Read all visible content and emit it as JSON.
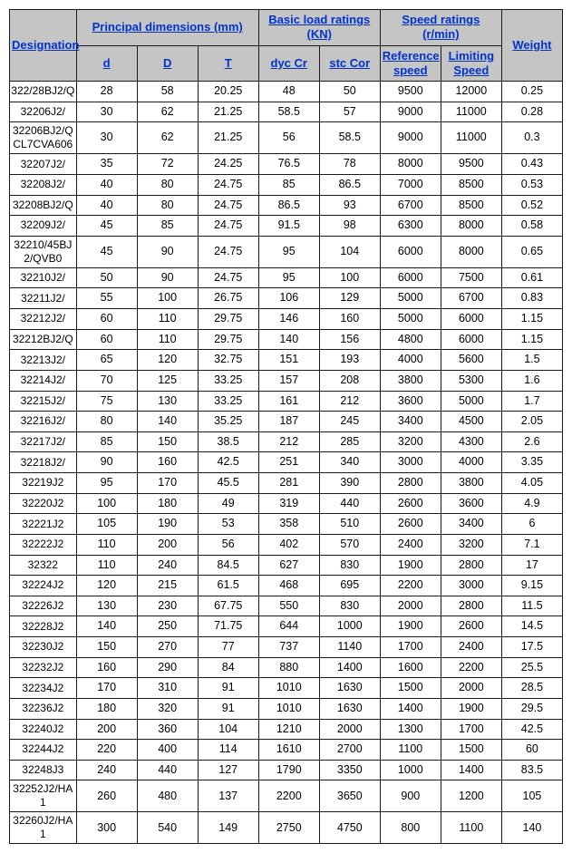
{
  "headers": {
    "designation": "Designation",
    "principal": "Principal dimensions (mm)",
    "basic_load": "Basic load ratings (KN)",
    "speed": "Speed ratings (r/min)",
    "weight": "Weight",
    "d": "d",
    "D": "D",
    "T": "T",
    "dycCr": "dyc Cr",
    "stcCor": "stc Cor",
    "reference": "Reference speed",
    "limiting": "Limiting Speed"
  },
  "rows": [
    {
      "desig": "322/28BJ2/Q",
      "d": "28",
      "D": "58",
      "T": "20.25",
      "dyc": "48",
      "stc": "50",
      "ref": "9500",
      "lim": "12000",
      "w": "0.25"
    },
    {
      "desig": "32206J2/",
      "d": "30",
      "D": "62",
      "T": "21.25",
      "dyc": "58.5",
      "stc": "57",
      "ref": "9000",
      "lim": "11000",
      "w": "0.28"
    },
    {
      "desig": "32206BJ2/QCL7CVA606",
      "d": "30",
      "D": "62",
      "T": "21.25",
      "dyc": "56",
      "stc": "58.5",
      "ref": "9000",
      "lim": "11000",
      "w": "0.3"
    },
    {
      "desig": "32207J2/",
      "d": "35",
      "D": "72",
      "T": "24.25",
      "dyc": "76.5",
      "stc": "78",
      "ref": "8000",
      "lim": "9500",
      "w": "0.43"
    },
    {
      "desig": "32208J2/",
      "d": "40",
      "D": "80",
      "T": "24.75",
      "dyc": "85",
      "stc": "86.5",
      "ref": "7000",
      "lim": "8500",
      "w": "0.53"
    },
    {
      "desig": "32208BJ2/Q",
      "d": "40",
      "D": "80",
      "T": "24.75",
      "dyc": "86.5",
      "stc": "93",
      "ref": "6700",
      "lim": "8500",
      "w": "0.52"
    },
    {
      "desig": "32209J2/",
      "d": "45",
      "D": "85",
      "T": "24.75",
      "dyc": "91.5",
      "stc": "98",
      "ref": "6300",
      "lim": "8000",
      "w": "0.58"
    },
    {
      "desig": "32210/45BJ2/QVB0",
      "d": "45",
      "D": "90",
      "T": "24.75",
      "dyc": "95",
      "stc": "104",
      "ref": "6000",
      "lim": "8000",
      "w": "0.65"
    },
    {
      "desig": "32210J2/",
      "d": "50",
      "D": "90",
      "T": "24.75",
      "dyc": "95",
      "stc": "100",
      "ref": "6000",
      "lim": "7500",
      "w": "0.61"
    },
    {
      "desig": "32211J2/",
      "d": "55",
      "D": "100",
      "T": "26.75",
      "dyc": "106",
      "stc": "129",
      "ref": "5000",
      "lim": "6700",
      "w": "0.83"
    },
    {
      "desig": "32212J2/",
      "d": "60",
      "D": "110",
      "T": "29.75",
      "dyc": "146",
      "stc": "160",
      "ref": "5000",
      "lim": "6000",
      "w": "1.15"
    },
    {
      "desig": "32212BJ2/Q",
      "d": "60",
      "D": "110",
      "T": "29.75",
      "dyc": "140",
      "stc": "156",
      "ref": "4800",
      "lim": "6000",
      "w": "1.15"
    },
    {
      "desig": "32213J2/",
      "d": "65",
      "D": "120",
      "T": "32.75",
      "dyc": "151",
      "stc": "193",
      "ref": "4000",
      "lim": "5600",
      "w": "1.5"
    },
    {
      "desig": "32214J2/",
      "d": "70",
      "D": "125",
      "T": "33.25",
      "dyc": "157",
      "stc": "208",
      "ref": "3800",
      "lim": "5300",
      "w": "1.6"
    },
    {
      "desig": "32215J2/",
      "d": "75",
      "D": "130",
      "T": "33.25",
      "dyc": "161",
      "stc": "212",
      "ref": "3600",
      "lim": "5000",
      "w": "1.7"
    },
    {
      "desig": "32216J2/",
      "d": "80",
      "D": "140",
      "T": "35.25",
      "dyc": "187",
      "stc": "245",
      "ref": "3400",
      "lim": "4500",
      "w": "2.05"
    },
    {
      "desig": "32217J2/",
      "d": "85",
      "D": "150",
      "T": "38.5",
      "dyc": "212",
      "stc": "285",
      "ref": "3200",
      "lim": "4300",
      "w": "2.6"
    },
    {
      "desig": "32218J2/",
      "d": "90",
      "D": "160",
      "T": "42.5",
      "dyc": "251",
      "stc": "340",
      "ref": "3000",
      "lim": "4000",
      "w": "3.35"
    },
    {
      "desig": "32219J2",
      "d": "95",
      "D": "170",
      "T": "45.5",
      "dyc": "281",
      "stc": "390",
      "ref": "2800",
      "lim": "3800",
      "w": "4.05"
    },
    {
      "desig": "32220J2",
      "d": "100",
      "D": "180",
      "T": "49",
      "dyc": "319",
      "stc": "440",
      "ref": "2600",
      "lim": "3600",
      "w": "4.9"
    },
    {
      "desig": "32221J2",
      "d": "105",
      "D": "190",
      "T": "53",
      "dyc": "358",
      "stc": "510",
      "ref": "2600",
      "lim": "3400",
      "w": "6"
    },
    {
      "desig": "32222J2",
      "d": "110",
      "D": "200",
      "T": "56",
      "dyc": "402",
      "stc": "570",
      "ref": "2400",
      "lim": "3200",
      "w": "7.1"
    },
    {
      "desig": "32322",
      "d": "110",
      "D": "240",
      "T": "84.5",
      "dyc": "627",
      "stc": "830",
      "ref": "1900",
      "lim": "2800",
      "w": "17"
    },
    {
      "desig": "32224J2",
      "d": "120",
      "D": "215",
      "T": "61.5",
      "dyc": "468",
      "stc": "695",
      "ref": "2200",
      "lim": "3000",
      "w": "9.15"
    },
    {
      "desig": "32226J2",
      "d": "130",
      "D": "230",
      "T": "67.75",
      "dyc": "550",
      "stc": "830",
      "ref": "2000",
      "lim": "2800",
      "w": "11.5"
    },
    {
      "desig": "32228J2",
      "d": "140",
      "D": "250",
      "T": "71.75",
      "dyc": "644",
      "stc": "1000",
      "ref": "1900",
      "lim": "2600",
      "w": "14.5"
    },
    {
      "desig": "32230J2",
      "d": "150",
      "D": "270",
      "T": "77",
      "dyc": "737",
      "stc": "1140",
      "ref": "1700",
      "lim": "2400",
      "w": "17.5"
    },
    {
      "desig": "32232J2",
      "d": "160",
      "D": "290",
      "T": "84",
      "dyc": "880",
      "stc": "1400",
      "ref": "1600",
      "lim": "2200",
      "w": "25.5"
    },
    {
      "desig": "32234J2",
      "d": "170",
      "D": "310",
      "T": "91",
      "dyc": "1010",
      "stc": "1630",
      "ref": "1500",
      "lim": "2000",
      "w": "28.5"
    },
    {
      "desig": "32236J2",
      "d": "180",
      "D": "320",
      "T": "91",
      "dyc": "1010",
      "stc": "1630",
      "ref": "1400",
      "lim": "1900",
      "w": "29.5"
    },
    {
      "desig": "32240J2",
      "d": "200",
      "D": "360",
      "T": "104",
      "dyc": "1210",
      "stc": "2000",
      "ref": "1300",
      "lim": "1700",
      "w": "42.5"
    },
    {
      "desig": "32244J2",
      "d": "220",
      "D": "400",
      "T": "114",
      "dyc": "1610",
      "stc": "2700",
      "ref": "1100",
      "lim": "1500",
      "w": "60"
    },
    {
      "desig": "32248J3",
      "d": "240",
      "D": "440",
      "T": "127",
      "dyc": "1790",
      "stc": "3350",
      "ref": "1000",
      "lim": "1400",
      "w": "83.5"
    },
    {
      "desig": "32252J2/HA1",
      "d": "260",
      "D": "480",
      "T": "137",
      "dyc": "2200",
      "stc": "3650",
      "ref": "900",
      "lim": "1200",
      "w": "105"
    },
    {
      "desig": "32260J2/HA1",
      "d": "300",
      "D": "540",
      "T": "149",
      "dyc": "2750",
      "stc": "4750",
      "ref": "800",
      "lim": "1100",
      "w": "140"
    }
  ],
  "columns": {
    "designation_width": 56,
    "data_width": 51
  },
  "style": {
    "header_bg": "#c5c5c5",
    "header_color": "#0033cc",
    "border_color": "#1a1a1a",
    "cell_color": "#000000"
  }
}
